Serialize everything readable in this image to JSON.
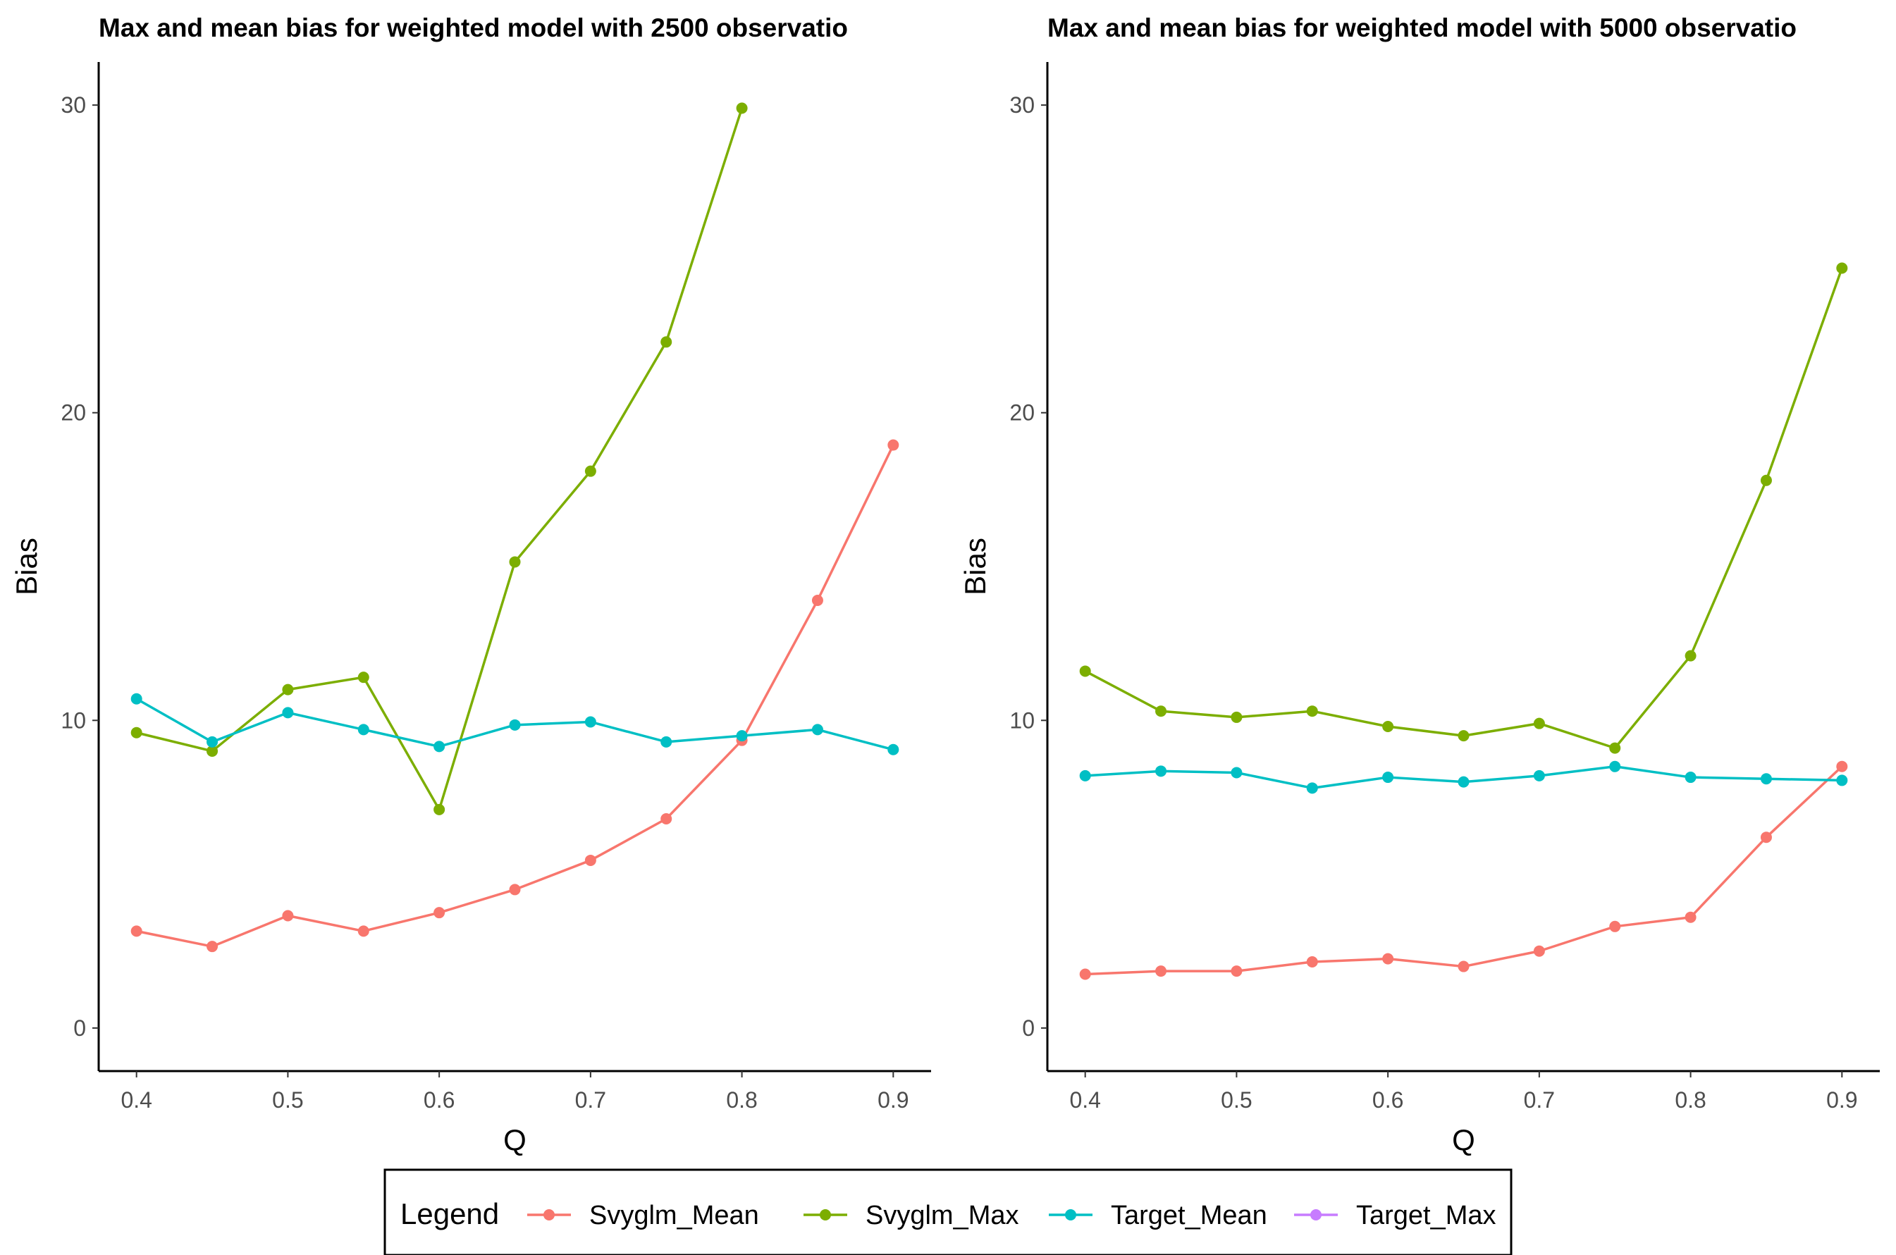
{
  "legend": {
    "title": "Legend",
    "entries": [
      {
        "name": "Svyglm_Mean",
        "color": "#F8766D"
      },
      {
        "name": "Svyglm_Max",
        "color": "#7CAE00"
      },
      {
        "name": "Target_Mean",
        "color": "#00BFC4"
      },
      {
        "name": "Target_Max",
        "color": "#C77CFF"
      }
    ]
  },
  "chart_data": [
    {
      "type": "line",
      "title": "Max and mean bias for weighted model with 2500 observatio",
      "xlabel": "Q",
      "ylabel": "Bias",
      "xlim": [
        0.375,
        0.925
      ],
      "ylim": [
        -1.4,
        31.4
      ],
      "xticks": [
        0.4,
        0.5,
        0.6,
        0.7,
        0.8,
        0.9
      ],
      "xtick_labels": [
        "0.4",
        "0.5",
        "0.6",
        "0.7",
        "0.8",
        "0.9"
      ],
      "yticks": [
        0,
        10,
        20,
        30
      ],
      "ytick_labels": [
        "0",
        "10",
        "20",
        "30"
      ],
      "grid": false,
      "legend_position": "bottom",
      "x": [
        0.4,
        0.45,
        0.5,
        0.55,
        0.6,
        0.65,
        0.7,
        0.75,
        0.8,
        0.85,
        0.9
      ],
      "series": [
        {
          "name": "Svyglm_Mean",
          "color": "#F8766D",
          "values": [
            3.15,
            2.65,
            3.65,
            3.15,
            3.75,
            4.5,
            5.45,
            6.8,
            9.35,
            13.9,
            18.95
          ]
        },
        {
          "name": "Svyglm_Max",
          "color": "#7CAE00",
          "values": [
            9.6,
            9.0,
            11.0,
            11.4,
            7.1,
            15.15,
            18.1,
            22.3,
            29.9,
            null,
            null
          ]
        },
        {
          "name": "Target_Mean",
          "color": "#00BFC4",
          "values": [
            10.7,
            9.3,
            10.25,
            9.7,
            9.15,
            9.85,
            9.95,
            9.3,
            9.5,
            9.7,
            9.05
          ]
        },
        {
          "name": "Target_Max",
          "color": "#C77CFF",
          "values": [
            null,
            null,
            null,
            null,
            null,
            null,
            null,
            null,
            null,
            null,
            null
          ]
        }
      ]
    },
    {
      "type": "line",
      "title": "Max and mean bias for weighted model with 5000 observatio",
      "xlabel": "Q",
      "ylabel": "Bias",
      "xlim": [
        0.375,
        0.925
      ],
      "ylim": [
        -1.4,
        31.4
      ],
      "xticks": [
        0.4,
        0.5,
        0.6,
        0.7,
        0.8,
        0.9
      ],
      "xtick_labels": [
        "0.4",
        "0.5",
        "0.6",
        "0.7",
        "0.8",
        "0.9"
      ],
      "yticks": [
        0,
        10,
        20,
        30
      ],
      "ytick_labels": [
        "0",
        "10",
        "20",
        "30"
      ],
      "grid": false,
      "legend_position": "bottom",
      "x": [
        0.4,
        0.45,
        0.5,
        0.55,
        0.6,
        0.65,
        0.7,
        0.75,
        0.8,
        0.85,
        0.9
      ],
      "series": [
        {
          "name": "Svyglm_Mean",
          "color": "#F8766D",
          "values": [
            1.75,
            1.85,
            1.85,
            2.15,
            2.25,
            2.0,
            2.5,
            3.3,
            3.6,
            6.2,
            8.5
          ]
        },
        {
          "name": "Svyglm_Max",
          "color": "#7CAE00",
          "values": [
            11.6,
            10.3,
            10.1,
            10.3,
            9.8,
            9.5,
            9.9,
            9.1,
            12.1,
            17.8,
            24.7
          ]
        },
        {
          "name": "Target_Mean",
          "color": "#00BFC4",
          "values": [
            8.2,
            8.35,
            8.3,
            7.8,
            8.15,
            8.0,
            8.2,
            8.5,
            8.15,
            8.1,
            8.05
          ]
        },
        {
          "name": "Target_Max",
          "color": "#C77CFF",
          "values": [
            null,
            null,
            null,
            null,
            null,
            null,
            null,
            null,
            null,
            null,
            null
          ]
        }
      ]
    }
  ]
}
